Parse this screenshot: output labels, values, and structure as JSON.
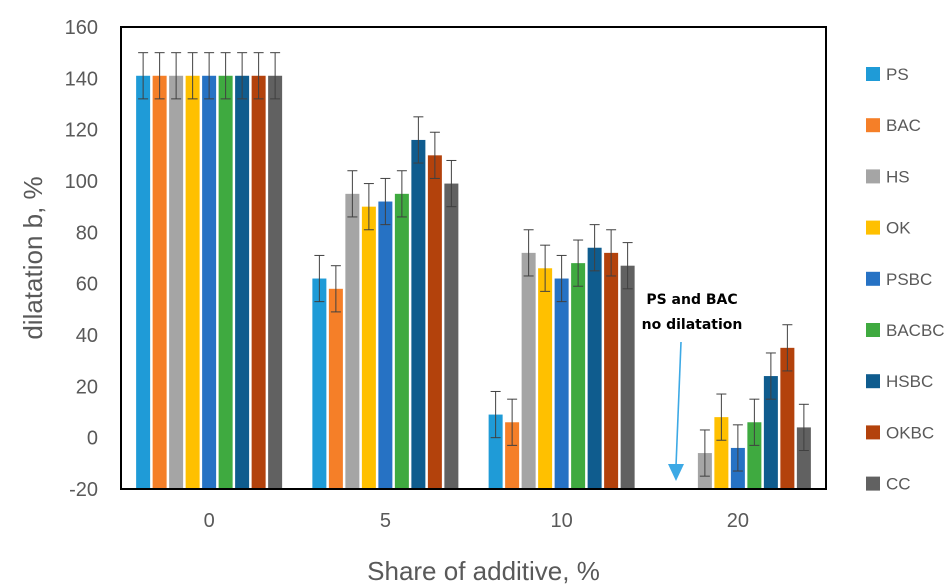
{
  "chart_data": {
    "type": "bar",
    "categories": [
      "0",
      "5",
      "10",
      "20"
    ],
    "xlabel": "Share of additive, %",
    "ylabel": "dilatation b, %",
    "ylim": [
      -20,
      160
    ],
    "yticks": [
      -20,
      0,
      20,
      40,
      60,
      80,
      100,
      120,
      140,
      160
    ],
    "grid": false,
    "legend_position": "right",
    "series": [
      {
        "name": "PS",
        "color": "#1F9BD7",
        "values": [
          141,
          62,
          9,
          -20
        ],
        "errors": [
          9,
          9,
          9,
          0
        ]
      },
      {
        "name": "BAC",
        "color": "#F57F28",
        "values": [
          141,
          58,
          6,
          -20
        ],
        "errors": [
          9,
          9,
          9,
          0
        ]
      },
      {
        "name": "HS",
        "color": "#A5A5A5",
        "values": [
          141,
          95,
          72,
          -6
        ],
        "errors": [
          9,
          9,
          9,
          9
        ]
      },
      {
        "name": "OK",
        "color": "#FFC000",
        "values": [
          141,
          90,
          66,
          8
        ],
        "errors": [
          9,
          9,
          9,
          9
        ]
      },
      {
        "name": "PSBC",
        "color": "#2672C4",
        "values": [
          141,
          92,
          62,
          -4
        ],
        "errors": [
          9,
          9,
          9,
          9
        ]
      },
      {
        "name": "BACBC",
        "color": "#3FAA40",
        "values": [
          141,
          95,
          68,
          6
        ],
        "errors": [
          9,
          9,
          9,
          9
        ]
      },
      {
        "name": "HSBC",
        "color": "#0F5C8E",
        "values": [
          141,
          116,
          74,
          24
        ],
        "errors": [
          9,
          9,
          9,
          9
        ]
      },
      {
        "name": "OKBC",
        "color": "#B3420C",
        "values": [
          141,
          110,
          72,
          35
        ],
        "errors": [
          9,
          9,
          9,
          9
        ]
      },
      {
        "name": "CC",
        "color": "#616161",
        "values": [
          141,
          99,
          67,
          4
        ],
        "errors": [
          9,
          9,
          9,
          9
        ]
      }
    ],
    "annotation": {
      "lines": [
        "PS and BAC",
        "no dilatation"
      ],
      "arrow_color": "#3DA9E5"
    }
  }
}
